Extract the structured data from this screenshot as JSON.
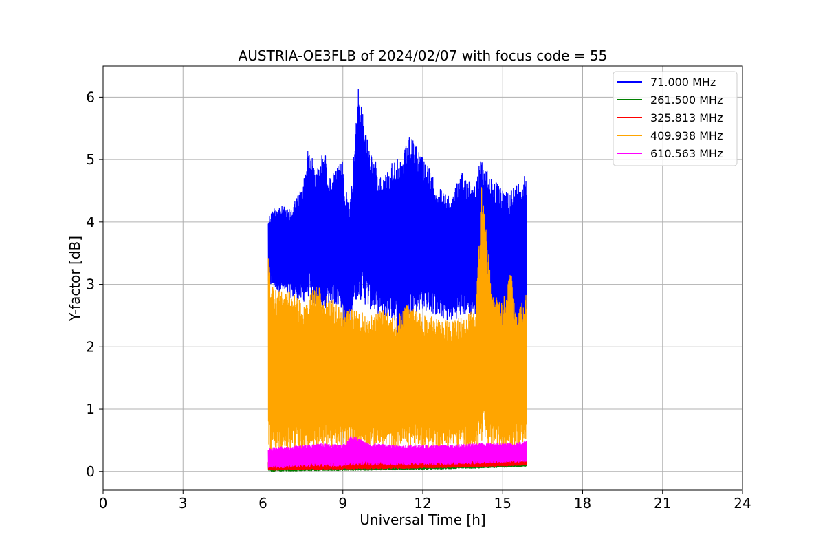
{
  "chart_data": {
    "type": "line",
    "title": "AUSTRIA-OE3FLB of 2024/02/07 with focus code = 55",
    "xlabel": "Universal Time [h]",
    "ylabel": "Y-factor [dB]",
    "xlim": [
      0,
      24
    ],
    "ylim": [
      -0.3,
      6.5
    ],
    "xticks": [
      0,
      3,
      6,
      9,
      12,
      15,
      18,
      21,
      24
    ],
    "xtick_labels": [
      "0",
      "3",
      "6",
      "9",
      "12",
      "15",
      "18",
      "21",
      "24"
    ],
    "yticks": [
      0,
      1,
      2,
      3,
      4,
      5,
      6
    ],
    "ytick_labels": [
      "0",
      "1",
      "2",
      "3",
      "4",
      "5",
      "6"
    ],
    "grid": true,
    "legend_position": "top-right",
    "data_range_hours": [
      6.2,
      16.0
    ],
    "series": [
      {
        "name": "  71.000 MHz",
        "color": "#0000ff",
        "x": [
          6.2,
          6.5,
          7.0,
          7.5,
          7.7,
          8.0,
          8.3,
          8.5,
          9.0,
          9.07,
          9.3,
          9.55,
          10.0,
          10.5,
          11.0,
          11.1,
          11.5,
          12.0,
          12.5,
          13.0,
          13.5,
          14.0,
          14.15,
          14.5,
          15.0,
          15.5,
          15.9
        ],
        "upper": [
          4.1,
          4.3,
          4.2,
          4.6,
          5.25,
          4.8,
          5.2,
          4.7,
          5.0,
          4.6,
          4.4,
          6.2,
          5.2,
          4.7,
          5.1,
          4.9,
          5.38,
          5.1,
          4.6,
          4.4,
          4.8,
          4.6,
          5.0,
          4.8,
          4.5,
          4.6,
          4.85
        ],
        "lower": [
          3.0,
          2.9,
          2.8,
          2.7,
          2.8,
          2.6,
          2.5,
          2.7,
          2.6,
          1.2,
          2.5,
          2.8,
          2.6,
          2.5,
          2.4,
          1.3,
          2.5,
          2.6,
          2.5,
          2.4,
          2.5,
          2.5,
          2.6,
          2.3,
          2.0,
          2.1,
          1.9
        ]
      },
      {
        "name": "261.500 MHz",
        "color": "#008000",
        "x": [
          6.2,
          8.0,
          10.0,
          12.0,
          14.0,
          15.9
        ],
        "upper": [
          0.15,
          0.14,
          0.15,
          0.16,
          0.15,
          0.16
        ],
        "lower": [
          0.0,
          0.01,
          0.02,
          0.03,
          0.05,
          0.08
        ]
      },
      {
        "name": "325.813 MHz",
        "color": "#ff0000",
        "x": [
          6.2,
          8.0,
          10.0,
          12.0,
          14.0,
          15.9
        ],
        "upper": [
          0.17,
          0.16,
          0.17,
          0.18,
          0.17,
          0.18
        ],
        "lower": [
          0.02,
          0.03,
          0.04,
          0.05,
          0.07,
          0.1
        ]
      },
      {
        "name": "409.938 MHz",
        "color": "#ffa500",
        "x": [
          6.2,
          6.3,
          6.6,
          7.0,
          7.5,
          8.0,
          8.5,
          9.0,
          9.5,
          10.0,
          10.5,
          11.0,
          11.5,
          12.0,
          12.5,
          13.0,
          13.5,
          14.0,
          14.2,
          14.6,
          15.0,
          15.3,
          15.5,
          15.9
        ],
        "upper": [
          3.5,
          3.0,
          2.9,
          2.9,
          2.7,
          3.0,
          2.8,
          2.6,
          2.6,
          2.5,
          2.6,
          2.5,
          2.7,
          2.5,
          2.5,
          2.4,
          2.5,
          2.6,
          4.7,
          2.9,
          2.7,
          3.3,
          2.5,
          2.9
        ],
        "lower": [
          0.3,
          0.3,
          0.32,
          0.33,
          0.34,
          0.35,
          0.36,
          0.37,
          0.38,
          0.38,
          0.38,
          0.38,
          0.38,
          0.38,
          0.38,
          0.38,
          0.38,
          0.38,
          0.38,
          0.38,
          0.38,
          0.38,
          0.38,
          0.5
        ]
      },
      {
        "name": "610.563 MHz",
        "color": "#ff00ff",
        "x": [
          6.2,
          7.0,
          8.0,
          9.0,
          9.3,
          10.0,
          11.0,
          12.0,
          13.0,
          14.0,
          15.0,
          15.9
        ],
        "upper": [
          0.38,
          0.4,
          0.45,
          0.42,
          0.58,
          0.45,
          0.42,
          0.42,
          0.42,
          0.45,
          0.45,
          0.48
        ],
        "lower": [
          0.05,
          0.06,
          0.08,
          0.08,
          0.1,
          0.1,
          0.1,
          0.1,
          0.11,
          0.12,
          0.14,
          0.15
        ]
      }
    ]
  }
}
